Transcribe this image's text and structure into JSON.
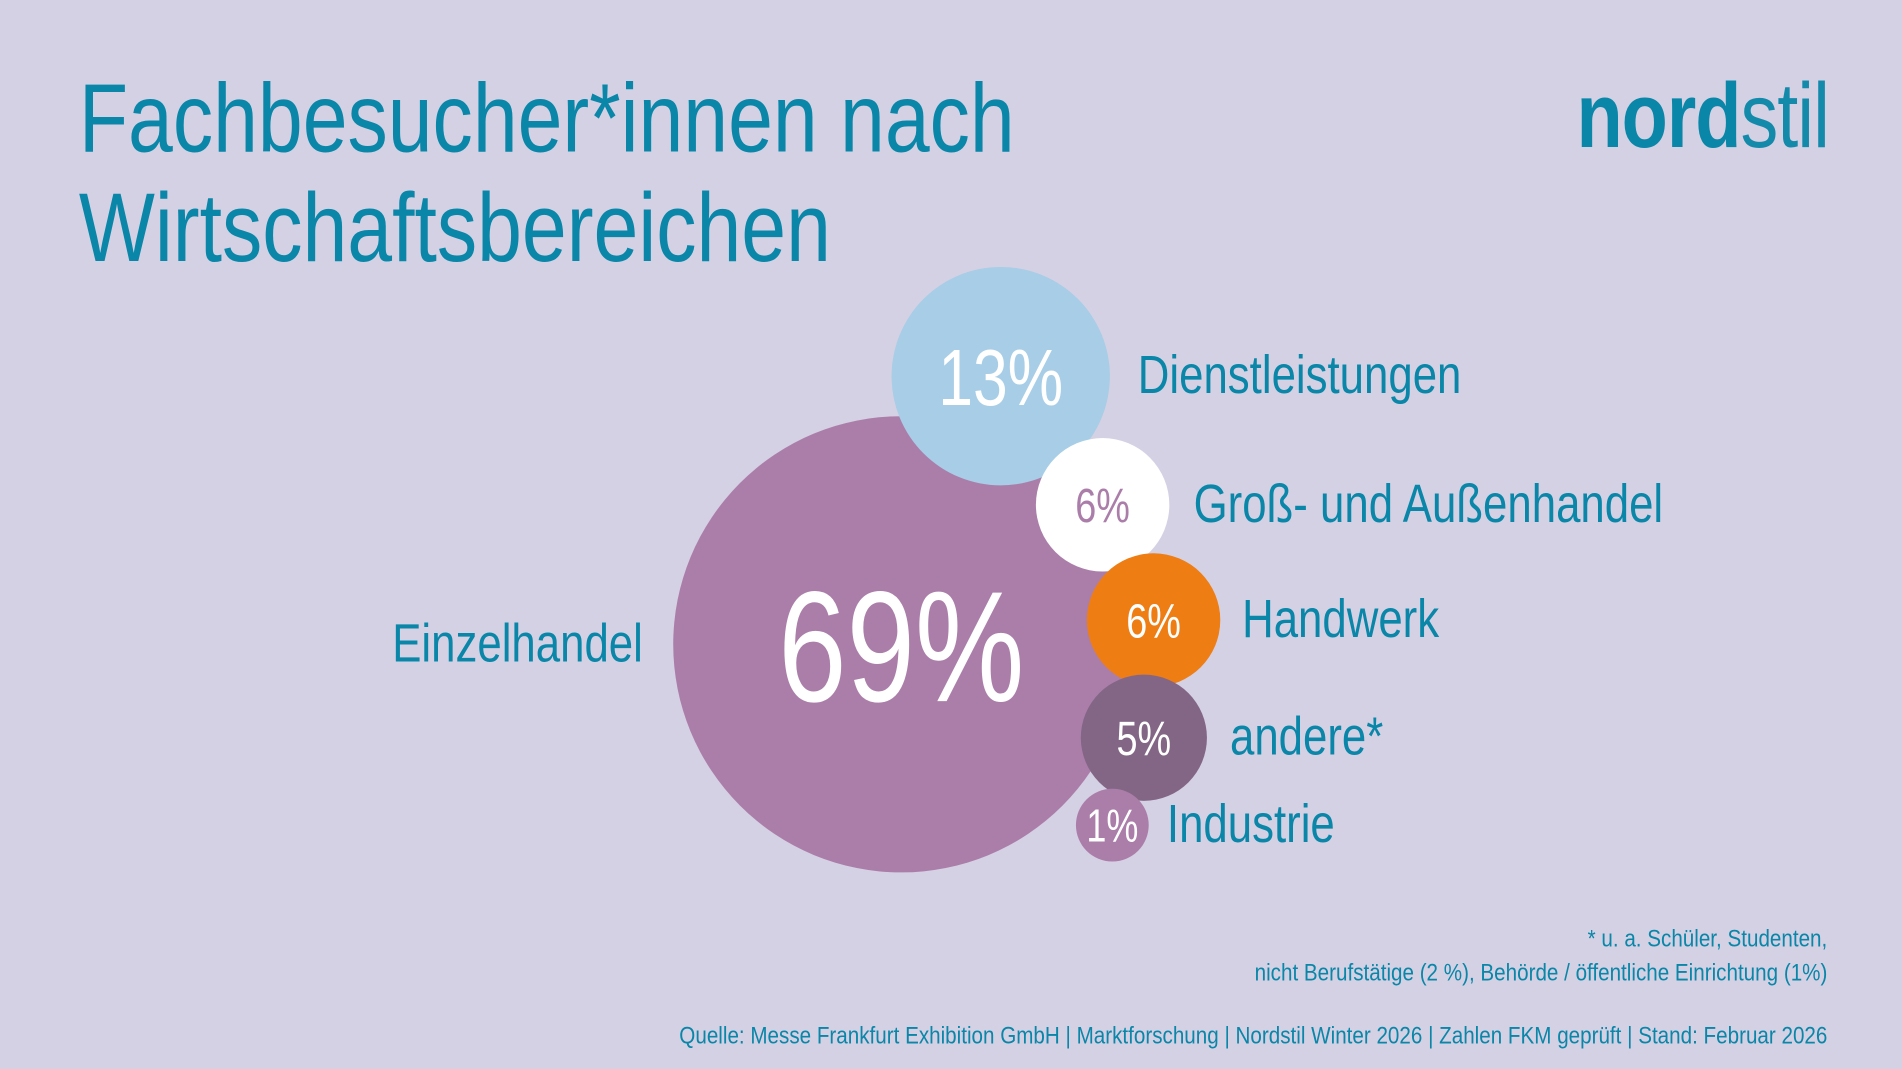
{
  "header": {
    "title_line1": "Fachbesucher*innen nach",
    "title_line2": "Wirtschaftsbereichen",
    "logo": "nordstil"
  },
  "chart_data": {
    "type": "bubble",
    "unit": "%",
    "items": [
      {
        "label": "Einzelhandel",
        "value": 69,
        "value_label": "69%",
        "color": "#ab7eaa",
        "text_color": "#ffffff"
      },
      {
        "label": "Dienstleistungen",
        "value": 13,
        "value_label": "13%",
        "color": "#a8cde6",
        "text_color": "#ffffff"
      },
      {
        "label": "Groß- und Außenhandel",
        "value": 6,
        "value_label": "6%",
        "color": "#ffffff",
        "text_color": "#ab7eaa"
      },
      {
        "label": "Handwerk",
        "value": 6,
        "value_label": "6%",
        "color": "#ee7d14",
        "text_color": "#ffffff"
      },
      {
        "label": "andere*",
        "value": 5,
        "value_label": "5%",
        "color": "#836685",
        "text_color": "#ffffff"
      },
      {
        "label": "Industrie",
        "value": 1,
        "value_label": "1%",
        "color": "#ab7eaa",
        "text_color": "#ffffff"
      }
    ]
  },
  "footnote": {
    "line1": "* u. a. Schüler, Studenten,",
    "line2": "nicht Berufstätige (2 %), Behörde / öffentliche Einrichtung (1%)"
  },
  "source": "Quelle: Messe Frankfurt Exhibition GmbH | Marktforschung | Nordstil Winter 2026 | Zahlen FKM geprüft | Stand: Februar 2026",
  "colors": {
    "background": "#d5d1e4",
    "text": "#0a86a8"
  }
}
